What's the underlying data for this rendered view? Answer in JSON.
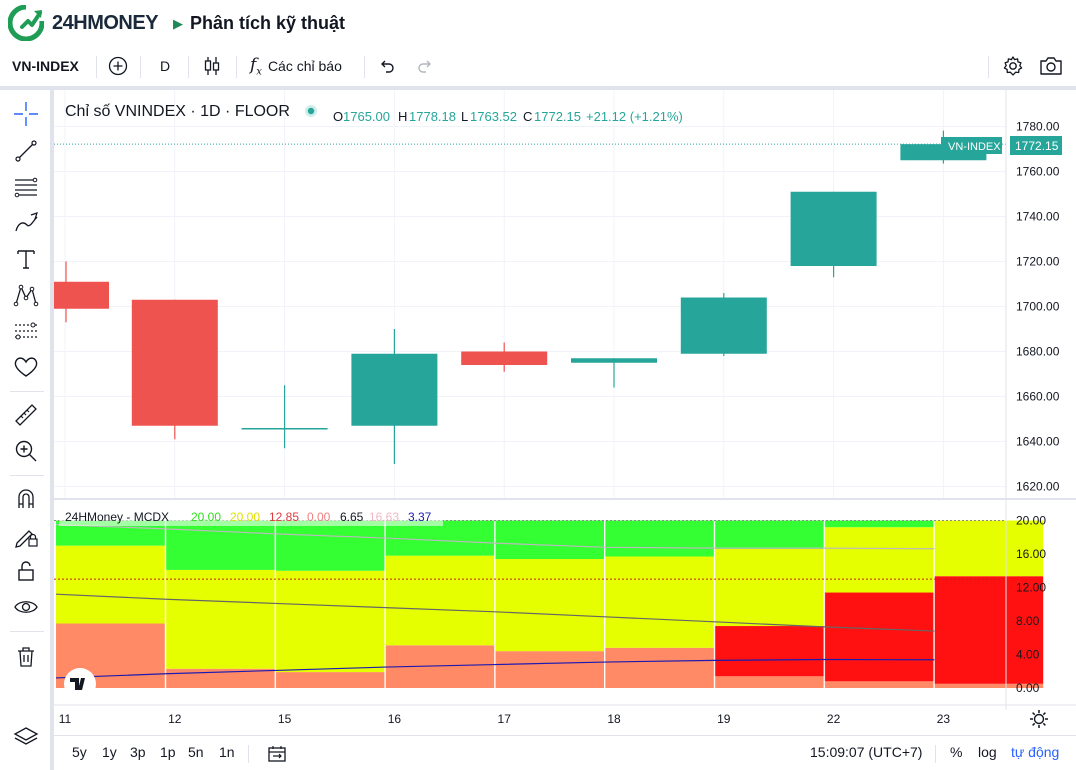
{
  "header": {
    "brand": "24HMONEY",
    "page_title": "Phân tích kỹ thuật"
  },
  "toolbar": {
    "symbol": "VN-INDEX",
    "interval": "D",
    "indicators_label": "Các chỉ báo",
    "icons": [
      "add-symbol-icon",
      "candle-style-icon",
      "fx-icon",
      "undo-icon",
      "redo-icon",
      "settings-icon",
      "camera-icon"
    ]
  },
  "left_tools": [
    "crosshair-icon",
    "trend-line-icon",
    "fib-lines-icon",
    "brush-icon",
    "text-icon",
    "pattern-icon",
    "forecast-icon",
    "heart-icon",
    "ruler-icon",
    "zoom-in-icon",
    "magnet-icon",
    "lock-draw-icon",
    "lock-icon",
    "eye-icon",
    "trash-icon",
    "layers-icon"
  ],
  "legend": {
    "title": "Chỉ số VNINDEX · 1D · FLOOR",
    "o_label": "O",
    "o": "1765.00",
    "h_label": "H",
    "h": "1778.18",
    "l_label": "L",
    "l": "1763.52",
    "c_label": "C",
    "c": "1772.15",
    "change": "+21.12 (+1.21%)"
  },
  "price_label": {
    "name": "VN-INDEX",
    "value": "1772.15"
  },
  "indicator_legend": {
    "name": "24HMoney - MCDX",
    "values": [
      {
        "text": "20.00",
        "color": "#33e021"
      },
      {
        "text": "20.00",
        "color": "#e0e000"
      },
      {
        "text": "12.85",
        "color": "#e03a3a"
      },
      {
        "text": "0.00",
        "color": "#f08080"
      },
      {
        "text": "6.65",
        "color": "#131722"
      },
      {
        "text": "16.63",
        "color": "#f0b8c8"
      },
      {
        "text": "3.37",
        "color": "#1b1bb0"
      }
    ]
  },
  "chart_data": [
    {
      "type": "candlestick",
      "title": "Chỉ số VNINDEX · 1D · FLOOR",
      "categories": [
        "11",
        "12",
        "15",
        "16",
        "17",
        "18",
        "19",
        "22",
        "23"
      ],
      "ohlc": [
        {
          "o": 1711,
          "h": 1720,
          "l": 1693,
          "c": 1699
        },
        {
          "o": 1703,
          "h": 1703,
          "l": 1641,
          "c": 1647
        },
        {
          "o": 1646,
          "h": 1665,
          "l": 1637,
          "c": 1646
        },
        {
          "o": 1647,
          "h": 1690,
          "l": 1630,
          "c": 1679
        },
        {
          "o": 1680,
          "h": 1684,
          "l": 1671,
          "c": 1674
        },
        {
          "o": 1675,
          "h": 1677,
          "l": 1664,
          "c": 1677
        },
        {
          "o": 1679,
          "h": 1706,
          "l": 1678,
          "c": 1704
        },
        {
          "o": 1718,
          "h": 1751,
          "l": 1713,
          "c": 1751
        },
        {
          "o": 1765,
          "h": 1778.18,
          "l": 1763.52,
          "c": 1772.15
        }
      ],
      "y_ticks": [
        "1780.00",
        "1760.00",
        "1740.00",
        "1720.00",
        "1700.00",
        "1680.00",
        "1660.00",
        "1640.00",
        "1620.00"
      ],
      "ylim": [
        1614,
        1787
      ],
      "up_color": "#26a69a",
      "down_color": "#ef5350",
      "last_price": 1772.15
    },
    {
      "type": "bar",
      "stacked": true,
      "title": "24HMoney - MCDX",
      "categories": [
        "11",
        "12",
        "15",
        "16",
        "17",
        "18",
        "19",
        "22",
        "23"
      ],
      "series": [
        {
          "color": "#ff8a65",
          "values": [
            7.7,
            2.3,
            1.9,
            5.1,
            4.4,
            4.8,
            1.4,
            0.8,
            0.5
          ]
        },
        {
          "color": "#ff1111",
          "values": [
            0,
            0,
            0,
            0,
            0,
            0,
            6.0,
            10.6,
            12.85
          ]
        },
        {
          "color": "#e6ff00",
          "values": [
            9.3,
            11.8,
            12.1,
            10.7,
            11.0,
            10.9,
            9.2,
            7.8,
            6.65
          ]
        },
        {
          "color": "#33ff33",
          "values": [
            3.0,
            5.9,
            6.0,
            4.2,
            4.6,
            4.3,
            3.4,
            0.8,
            0
          ]
        }
      ],
      "lines": [
        {
          "color": "#666666",
          "values": [
            11.2,
            10.6,
            10.1,
            9.6,
            9.1,
            8.5,
            7.9,
            7.3,
            6.8
          ]
        },
        {
          "color": "#bbbbbb",
          "values": [
            19.5,
            19.0,
            18.4,
            17.9,
            17.3,
            16.8,
            16.7,
            16.7,
            16.63
          ]
        },
        {
          "color": "#1b1bb0",
          "values": [
            1.2,
            1.7,
            2.1,
            2.5,
            2.8,
            3.1,
            3.3,
            3.4,
            3.37
          ]
        }
      ],
      "y_ticks": [
        "20.00",
        "16.00",
        "12.00",
        "8.00",
        "4.00",
        "0.00"
      ],
      "ylim": [
        0,
        20
      ],
      "ref_line": 13
    }
  ],
  "bottom_bar": {
    "ranges": [
      "5y",
      "1y",
      "3p",
      "1p",
      "5n",
      "1n"
    ],
    "time": "15:09:07 (UTC+7)",
    "percent": "%",
    "log": "log",
    "auto": "tự động"
  }
}
